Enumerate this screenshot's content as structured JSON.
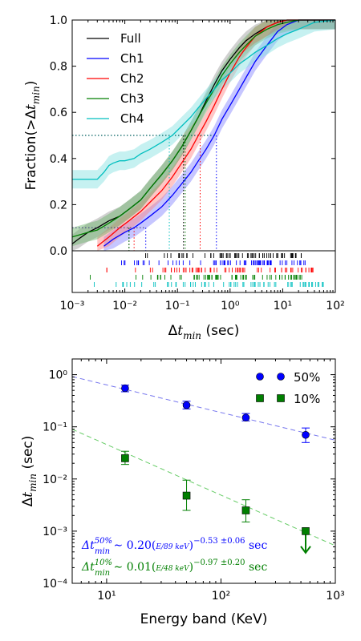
{
  "chart_data": [
    {
      "type": "line",
      "xscale": "log",
      "xlim": [
        0.001,
        100
      ],
      "ylim": [
        0.0,
        1.0
      ],
      "xlabel": "Δt_min (sec)",
      "ylabel": "Fraction(>Δt_min)",
      "x_ticks": [
        "10⁻³",
        "10⁻²",
        "10⁻¹",
        "10⁰",
        "10¹",
        "10²"
      ],
      "y_ticks": [
        "0.0",
        "0.2",
        "0.4",
        "0.6",
        "0.8",
        "1.0"
      ],
      "legend_position": "top-left",
      "series": [
        {
          "name": "Full",
          "color": "#000000",
          "band": "#9a9a9a",
          "x": [
            0.001,
            0.0013,
            0.002,
            0.003,
            0.005,
            0.008,
            0.012,
            0.02,
            0.03,
            0.05,
            0.08,
            0.12,
            0.18,
            0.25,
            0.35,
            0.5,
            0.7,
            1.0,
            1.5,
            2,
            3,
            5,
            8,
            12,
            20,
            40,
            100
          ],
          "y": [
            0.03,
            0.05,
            0.08,
            0.1,
            0.13,
            0.15,
            0.18,
            0.22,
            0.27,
            0.33,
            0.39,
            0.45,
            0.52,
            0.58,
            0.65,
            0.72,
            0.78,
            0.83,
            0.88,
            0.91,
            0.94,
            0.97,
            0.99,
            1.0,
            1.0,
            1.0,
            1.0
          ]
        },
        {
          "name": "Ch1",
          "color": "#0000ff",
          "band": "#8080ff",
          "x": [
            0.004,
            0.006,
            0.01,
            0.015,
            0.02,
            0.03,
            0.05,
            0.08,
            0.12,
            0.18,
            0.25,
            0.35,
            0.5,
            0.7,
            1.0,
            1.5,
            2,
            3,
            5,
            8,
            12,
            20,
            40,
            100
          ],
          "y": [
            0.02,
            0.05,
            0.08,
            0.1,
            0.12,
            0.15,
            0.19,
            0.24,
            0.29,
            0.34,
            0.39,
            0.44,
            0.5,
            0.57,
            0.63,
            0.7,
            0.75,
            0.82,
            0.89,
            0.95,
            0.98,
            1.0,
            1.0,
            1.0
          ]
        },
        {
          "name": "Ch2",
          "color": "#ff0000",
          "band": "#ff8080",
          "x": [
            0.003,
            0.005,
            0.008,
            0.012,
            0.02,
            0.03,
            0.05,
            0.08,
            0.12,
            0.18,
            0.25,
            0.35,
            0.5,
            0.7,
            1.0,
            1.5,
            2,
            3,
            5,
            8,
            12,
            20,
            40,
            100
          ],
          "y": [
            0.02,
            0.06,
            0.1,
            0.13,
            0.17,
            0.21,
            0.26,
            0.32,
            0.38,
            0.44,
            0.5,
            0.56,
            0.63,
            0.7,
            0.77,
            0.84,
            0.88,
            0.93,
            0.97,
            0.99,
            1.0,
            1.0,
            1.0,
            1.0
          ]
        },
        {
          "name": "Ch3",
          "color": "#007f00",
          "band": "#66b266",
          "x": [
            0.001,
            0.002,
            0.003,
            0.005,
            0.008,
            0.012,
            0.02,
            0.03,
            0.05,
            0.08,
            0.12,
            0.18,
            0.25,
            0.35,
            0.5,
            0.7,
            1.0,
            1.5,
            2,
            3,
            5,
            8,
            12,
            20,
            40,
            100
          ],
          "y": [
            0.06,
            0.08,
            0.09,
            0.12,
            0.15,
            0.18,
            0.22,
            0.27,
            0.33,
            0.39,
            0.45,
            0.52,
            0.58,
            0.64,
            0.7,
            0.76,
            0.81,
            0.86,
            0.89,
            0.93,
            0.96,
            0.98,
            0.99,
            1.0,
            1.0,
            1.0
          ]
        },
        {
          "name": "Ch4",
          "color": "#00bfbf",
          "band": "#80dfdf",
          "x": [
            0.001,
            0.002,
            0.003,
            0.004,
            0.005,
            0.006,
            0.008,
            0.01,
            0.015,
            0.02,
            0.03,
            0.05,
            0.08,
            0.12,
            0.18,
            0.25,
            0.35,
            0.5,
            0.7,
            1.0,
            1.5,
            2,
            3,
            5,
            8,
            12,
            20,
            40,
            100
          ],
          "y": [
            0.31,
            0.31,
            0.31,
            0.34,
            0.37,
            0.38,
            0.39,
            0.39,
            0.4,
            0.42,
            0.44,
            0.47,
            0.5,
            0.54,
            0.58,
            0.62,
            0.66,
            0.7,
            0.74,
            0.77,
            0.81,
            0.83,
            0.86,
            0.89,
            0.92,
            0.94,
            0.96,
            0.99,
            1.0
          ]
        }
      ],
      "medians_50pct": {
        "Full": 0.13,
        "Ch1": 0.55,
        "Ch2": 0.27,
        "Ch3": 0.14,
        "Ch4": 0.07
      },
      "tenth_pct": {
        "Full": 0.012,
        "Ch1": 0.025,
        "Ch2": 0.015,
        "Ch3": 0.012
      }
    },
    {
      "type": "scatter",
      "xscale": "log",
      "yscale": "log",
      "xlim": [
        5,
        1000
      ],
      "ylim": [
        0.0001,
        2
      ],
      "xlabel": "Energy band (KeV)",
      "ylabel": "Δt_min (sec)",
      "x_ticks": [
        "10¹",
        "10²",
        "10³"
      ],
      "y_ticks": [
        "10⁻⁴",
        "10⁻³",
        "10⁻²",
        "10⁻¹",
        "10⁰"
      ],
      "legend_position": "top-right",
      "series": [
        {
          "name": "50%",
          "color": "#0000ff",
          "marker": "circle",
          "x": [
            14.5,
            50,
            165,
            550
          ],
          "y": [
            0.55,
            0.26,
            0.15,
            0.07
          ],
          "yerr_low": [
            0.47,
            0.22,
            0.13,
            0.05
          ],
          "yerr_high": [
            0.63,
            0.31,
            0.18,
            0.095
          ]
        },
        {
          "name": "10%",
          "color": "#007f00",
          "marker": "square",
          "x": [
            14.5,
            50,
            165,
            550
          ],
          "y": [
            0.025,
            0.0048,
            0.0025,
            0.001
          ],
          "yerr_low": [
            0.019,
            0.0025,
            0.0015,
            null
          ],
          "yerr_high": [
            0.034,
            0.0095,
            0.004,
            null
          ],
          "upper_limit": [
            false,
            false,
            false,
            true
          ]
        }
      ],
      "fits": [
        {
          "color": "#7777ee",
          "x": [
            5,
            1000
          ],
          "A": 0.2,
          "E0": 89,
          "slope": -0.53
        },
        {
          "color": "#66cc66",
          "x": [
            5,
            1000
          ],
          "A": 0.01,
          "E0": 48,
          "slope": -0.97
        }
      ],
      "annotations": [
        {
          "color": "#0000ff",
          "lhs": "Δt",
          "sup": "50%",
          "sub": "min",
          "tilde": "∼",
          "coef": "0.20(",
          "frac_num": "E",
          "frac_den": "89 keV",
          "close": ")",
          "exp": "−0.53 ±0.06",
          "unit": "sec"
        },
        {
          "color": "#007f00",
          "lhs": "Δt",
          "sup": "10%",
          "sub": "min",
          "tilde": "∼",
          "coef": "0.01(",
          "frac_num": "E",
          "frac_den": "48 keV",
          "close": ")",
          "exp": "−0.97 ±0.20",
          "unit": "sec"
        }
      ]
    }
  ]
}
